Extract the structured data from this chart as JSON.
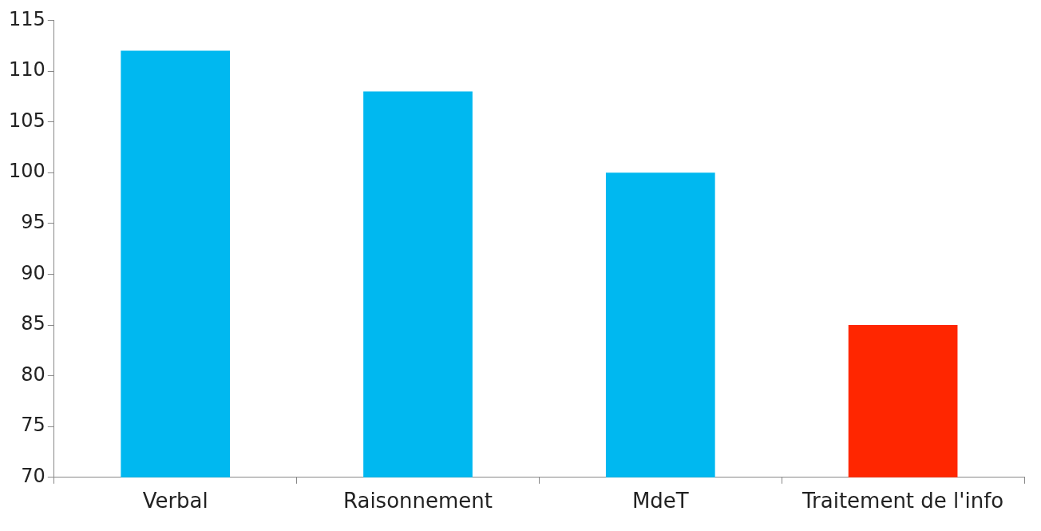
{
  "chart_data": {
    "type": "bar",
    "categories": [
      "Verbal",
      "Raisonnement",
      "MdeT",
      "Traitement de l'info"
    ],
    "values": [
      112,
      108,
      100,
      85
    ],
    "colors": [
      "#00b8f0",
      "#00b8f0",
      "#00b8f0",
      "#ff2600"
    ],
    "ylim": [
      70,
      115
    ],
    "yticks": [
      70,
      75,
      80,
      85,
      90,
      95,
      100,
      105,
      110,
      115
    ],
    "grid": false,
    "legend": false
  }
}
